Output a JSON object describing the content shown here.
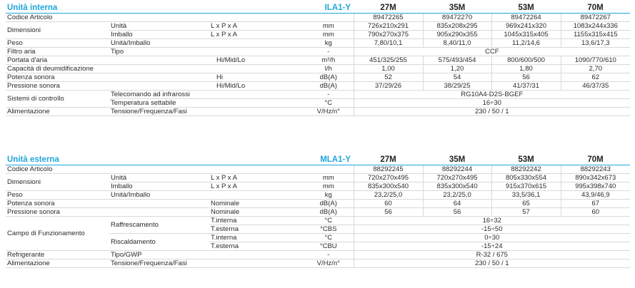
{
  "internal": {
    "title": "Unità interna",
    "code": "ILA1-Y",
    "models": [
      "27M",
      "35M",
      "53M",
      "70M"
    ],
    "article_label": "Codice Articolo",
    "articles": [
      "89472265",
      "89472270",
      "89472264",
      "89472267"
    ],
    "dimensions": {
      "label": "Dimensioni",
      "unit_row": {
        "sub": "Unità",
        "spec": "L x P x A",
        "unit": "mm",
        "values": [
          "726x210x291",
          "835x208x295",
          "969x241x320",
          "1083x244x336"
        ]
      },
      "pack_row": {
        "sub": "Imballo",
        "spec": "L x P x A",
        "unit": "mm",
        "values": [
          "790x270x375",
          "905x290x355",
          "1045x315x405",
          "1155x315x415"
        ]
      }
    },
    "weight": {
      "label": "Peso",
      "sub": "Unità/Imballo",
      "unit": "kg",
      "values": [
        "7,80/10,1",
        "8,40/11,0",
        "11,2/14,6",
        "13,6/17,3"
      ]
    },
    "filter": {
      "label": "Filtro aria",
      "sub": "Tipo",
      "unit": "-",
      "value": "CCF"
    },
    "airflow": {
      "label": "Portata d'aria",
      "spec": "Hi/Mid/Lo",
      "unit": "m³/h",
      "values": [
        "451/325/255",
        "575/493/454",
        "800/600/500",
        "1090/770/610"
      ]
    },
    "dehum": {
      "label": "Capacità di deumidificazione",
      "unit": "l/h",
      "values": [
        "1,00",
        "1,20",
        "1,80",
        "2,70"
      ]
    },
    "power": {
      "label": "Potenza sonora",
      "spec": "Hi",
      "unit": "dB(A)",
      "values": [
        "52",
        "54",
        "56",
        "62"
      ]
    },
    "pressure": {
      "label": "Pressione sonora",
      "spec": "Hi/Mid/Lo",
      "unit": "dB(A)",
      "values": [
        "37/29/26",
        "38/29/25",
        "41/37/31",
        "46/37/35"
      ]
    },
    "control": {
      "label": "Sistemi di controllo",
      "remote": {
        "sub": "Telecomando ad infrarossi",
        "unit": "-",
        "value": "RG10A4-D2S-BGEF"
      },
      "temp": {
        "sub": "Temperatura settabile",
        "unit": "°C",
        "value": "16÷30"
      }
    },
    "supply": {
      "label": "Alimentazione",
      "sub": "Tensione/Frequenza/Fasi",
      "unit": "V/Hz/n°",
      "value": "230 / 50 / 1"
    }
  },
  "external": {
    "title": "Unità esterna",
    "code": "MLA1-Y",
    "models": [
      "27M",
      "35M",
      "53M",
      "70M"
    ],
    "article_label": "Codice Articolo",
    "articles": [
      "88292245",
      "88292244",
      "88292242",
      "88292243"
    ],
    "dimensions": {
      "label": "Dimensioni",
      "unit_row": {
        "sub": "Unità",
        "spec": "L x P x A",
        "unit": "mm",
        "values": [
          "720x270x495",
          "720x270x495",
          "805x330x554",
          "890x342x673"
        ]
      },
      "pack_row": {
        "sub": "Imballo",
        "spec": "L x P x A",
        "unit": "mm",
        "values": [
          "835x300x540",
          "835x300x540",
          "915x370x615",
          "995x398x740"
        ]
      }
    },
    "weight": {
      "label": "Peso",
      "sub": "Unità/Imballo",
      "unit": "kg",
      "values": [
        "23,2/25,0",
        "23,2/25,0",
        "33,5/36,1",
        "43,9/46,9"
      ]
    },
    "power": {
      "label": "Potenza sonora",
      "spec": "Nominale",
      "unit": "dB(A)",
      "values": [
        "60",
        "64",
        "65",
        "67"
      ]
    },
    "pressure": {
      "label": "Pressione sonora",
      "spec": "Nominale",
      "unit": "dB(A)",
      "values": [
        "56",
        "56",
        "57",
        "60"
      ]
    },
    "range": {
      "label": "Campo di Funzionamento",
      "cooling": {
        "sub": "Raffrescamento",
        "int": {
          "spec": "T.interna",
          "unit": "°C",
          "value": "16÷32"
        },
        "ext": {
          "spec": "T.esterna",
          "unit": "°CBS",
          "value": "-15÷50"
        }
      },
      "heating": {
        "sub": "Riscaldamento",
        "int": {
          "spec": "T.interna",
          "unit": "°C",
          "value": "0÷30"
        },
        "ext": {
          "spec": "T.esterna",
          "unit": "°CBU",
          "value": "-15÷24"
        }
      }
    },
    "refrigerant": {
      "label": "Refrigerante",
      "sub": "Tipo/GWP",
      "unit": "-",
      "value": "R-32 / 675"
    },
    "supply": {
      "label": "Alimentazione",
      "sub": "Tensione/Frequenza/Fasi",
      "unit": "V/Hz/n°",
      "value": "230 / 50 / 1"
    }
  }
}
